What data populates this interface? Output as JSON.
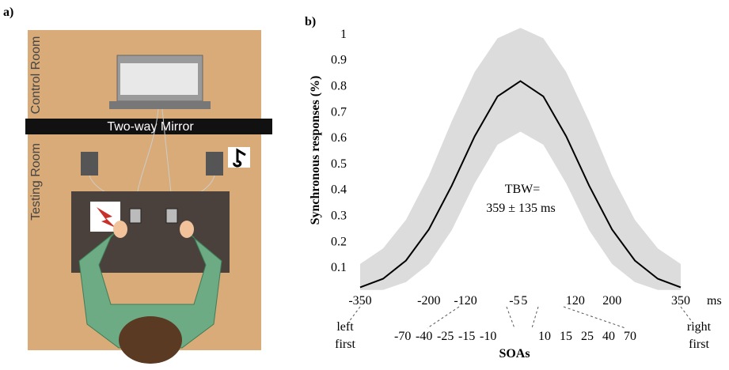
{
  "panel_labels": [
    "a)",
    "b)"
  ],
  "illustration": {
    "control_room": "Control Room",
    "testing_room": "Testing Room",
    "mirror": "Two-way Mirror"
  },
  "chart_data": {
    "type": "band-line",
    "ylabel": "Synchronous responses (%)",
    "xlabel": "SOAs",
    "x_unit": "ms",
    "annotation": [
      "TBW=",
      "359 ± 135 ms"
    ],
    "x": [
      -350,
      -300,
      -250,
      -200,
      -150,
      -100,
      -50,
      0,
      50,
      100,
      150,
      200,
      250,
      300,
      350
    ],
    "values": [
      0.02,
      0.053,
      0.123,
      0.243,
      0.412,
      0.602,
      0.756,
      0.815,
      0.756,
      0.602,
      0.412,
      0.243,
      0.123,
      0.053,
      0.02
    ],
    "band_upper": [
      0.11,
      0.17,
      0.28,
      0.45,
      0.66,
      0.85,
      0.98,
      1.02,
      0.98,
      0.85,
      0.66,
      0.45,
      0.28,
      0.17,
      0.11
    ],
    "band_lower": [
      0.01,
      0.01,
      0.04,
      0.11,
      0.24,
      0.42,
      0.57,
      0.62,
      0.57,
      0.42,
      0.24,
      0.11,
      0.04,
      0.01,
      0.01
    ],
    "color": "#000000",
    "band_color": "#dcdcdc",
    "xlim": [
      -350,
      350
    ],
    "ylim": [
      0,
      1.03
    ],
    "xticks": [
      -350,
      -200,
      -120,
      -5,
      5,
      120,
      200,
      350
    ],
    "yticks": [
      0.1,
      0.2,
      0.3,
      0.4,
      0.5,
      0.6,
      0.7,
      0.8,
      0.9,
      1
    ],
    "soa_left": [
      -70,
      -40,
      -25,
      -15,
      -10
    ],
    "soa_right": [
      10,
      15,
      25,
      40,
      70
    ],
    "left_label": "left first",
    "right_label": "right first"
  }
}
